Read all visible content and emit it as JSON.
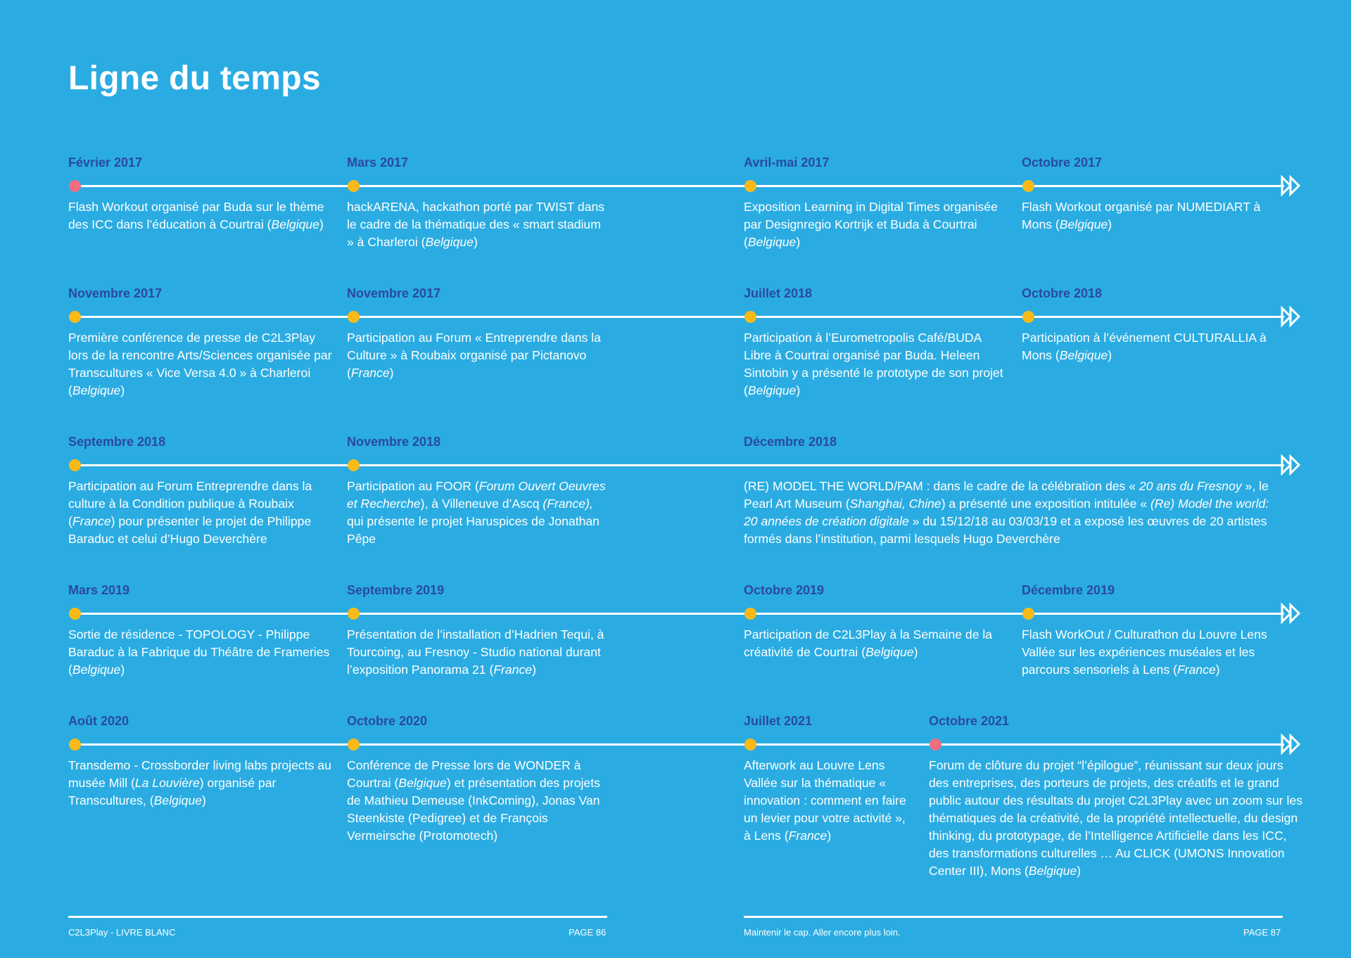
{
  "title": "Ligne du temps",
  "rows": [
    {
      "items": [
        {
          "date": "Février 2017",
          "dot": "pink",
          "html": "Flash Workout organisé par Buda sur le thème des ICC dans l’éducation à Courtrai (<i>Belgique</i>)"
        },
        {
          "date": "Mars 2017",
          "dot": "yellow",
          "html": "hackARENA, hackathon porté par TWIST dans le cadre de la thématique des « smart stadium » à Charleroi (<i>Belgique</i>)"
        },
        {
          "date": "Avril-mai 2017",
          "dot": "yellow",
          "html": "Exposition Learning in Digital Times organisée par Designregio Kortrijk et Buda à Courtrai (<i>Belgique</i>)"
        },
        {
          "date": "Octobre 2017",
          "dot": "yellow",
          "html": "Flash Workout organisé par NUMEDIART à Mons (<i>Belgique</i>)"
        }
      ]
    },
    {
      "items": [
        {
          "date": "Novembre 2017",
          "dot": "yellow",
          "html": "Première conférence de presse de C2L3Play lors de la rencontre Arts/Sciences organisée par Transcultures « Vice Versa 4.0 » à Charleroi (<i>Belgique</i>)"
        },
        {
          "date": "Novembre 2017",
          "dot": "yellow",
          "html": "Participation au Forum « Entreprendre dans la Culture » à Roubaix organisé par Pictanovo (<i>France</i>)"
        },
        {
          "date": "Juillet 2018",
          "dot": "yellow",
          "html": "Participation à l’Eurometropolis Café/BUDA Libre à Courtrai organisé par Buda. Heleen Sintobin y a présenté le prototype de son projet (<i>Belgique</i>)"
        },
        {
          "date": "Octobre 2018",
          "dot": "yellow",
          "html": "Participation à l’événement CULTURALLIA à Mons (<i>Belgique</i>)"
        }
      ]
    },
    {
      "items": [
        {
          "date": "Septembre 2018",
          "dot": "yellow",
          "html": "Participation au Forum Entreprendre dans la culture à la Condition publique à Roubaix (<i>France</i>) pour présenter le projet de Philippe Baraduc et celui d’Hugo Deverchère"
        },
        {
          "date": "Novembre 2018",
          "dot": "yellow",
          "html": "Participation au FOOR (<i>Forum Ouvert Oeuvres et Recherche</i>), à Villeneuve d’Ascq <i>(France),</i> qui présente le projet Haruspices de Jonathan Pêpe"
        },
        {
          "date": "Décembre 2018",
          "dot": "none",
          "html": "(RE) MODEL THE WORLD/PAM : dans le cadre de la célébration des « <i>20 ans du Fresnoy</i> », le Pearl Art Museum (<i>Shanghai, Chine</i>) a présenté une exposition intitulée « <i>(Re) Model the world: 20 années de création digitale</i> » du 15/12/18 au 03/03/19 et a exposé les œuvres de 20 artistes formés dans l’institution, parmi lesquels Hugo Deverchère"
        }
      ]
    },
    {
      "items": [
        {
          "date": "Mars 2019",
          "dot": "yellow",
          "html": "Sortie de résidence - TOPOLOGY - Philippe Baraduc à la Fabrique du Théâtre de Frameries (<i>Belgique</i>)"
        },
        {
          "date": "Septembre 2019",
          "dot": "yellow",
          "html": "Présentation de l’installation d’Hadrien Tequi, à Tourcoing, au Fresnoy - Studio national durant l’exposition Panorama 21 (<i>France</i>)"
        },
        {
          "date": "Octobre 2019",
          "dot": "yellow",
          "html": "Participation de C2L3Play à la Semaine de la créativité de Courtrai (<i>Belgique</i>)"
        },
        {
          "date": "Décembre 2019",
          "dot": "yellow",
          "html": "Flash WorkOut / Culturathon du Louvre Lens Vallée sur les expériences muséales et les parcours sensoriels à Lens (<i>France</i>)"
        }
      ]
    },
    {
      "items": [
        {
          "date": "Août 2020",
          "dot": "yellow",
          "html": "Transdemo - Crossborder living labs projects au musée Mill (<i>La Louvière</i>) organisé par Transcultures, (<i>Belgique</i>)"
        },
        {
          "date": "Octobre 2020",
          "dot": "yellow",
          "html": "Conférence de Presse lors de WONDER à Courtrai (<i>Belgique</i>) et présentation des projets de Mathieu Demeuse (InkComing), Jonas Van Steenkiste (Pedigree) et de François Vermeirsche (Protomotech)"
        },
        {
          "date": "Juillet 2021",
          "dot": "yellow",
          "html": "Afterwork au Louvre Lens Vallée sur la thématique « innovation : comment en faire un levier pour votre activité », à Lens (<i>France</i>)"
        },
        {
          "date": "Octobre 2021",
          "dot": "pink",
          "html": "Forum de clôture du projet “l’épilogue”, réunissant sur deux jours des entreprises, des porteurs de projets, des créatifs et le grand public autour des résultats du projet C2L3Play avec un zoom sur les thématiques de la créativité, de la propriété intellectuelle, du design thinking, du prototypage, de l’Intelligence Artificielle dans les ICC, des transformations culturelles … Au CLICK (UMONS Innovation Center III), Mons (<i>Belgique</i>)"
        }
      ]
    }
  ],
  "footer": {
    "left_title": "C2L3Play - LIVRE BLANC",
    "left_page": "PAGE 86",
    "right_title": "Maintenir le cap. Aller encore plus loin.",
    "right_page": "PAGE 87"
  },
  "colors": {
    "background": "#2AACE2",
    "date_text": "#2A4A9E",
    "dot_yellow": "#FBBA18",
    "dot_pink": "#EE6E80",
    "line": "#FFFFFF"
  }
}
